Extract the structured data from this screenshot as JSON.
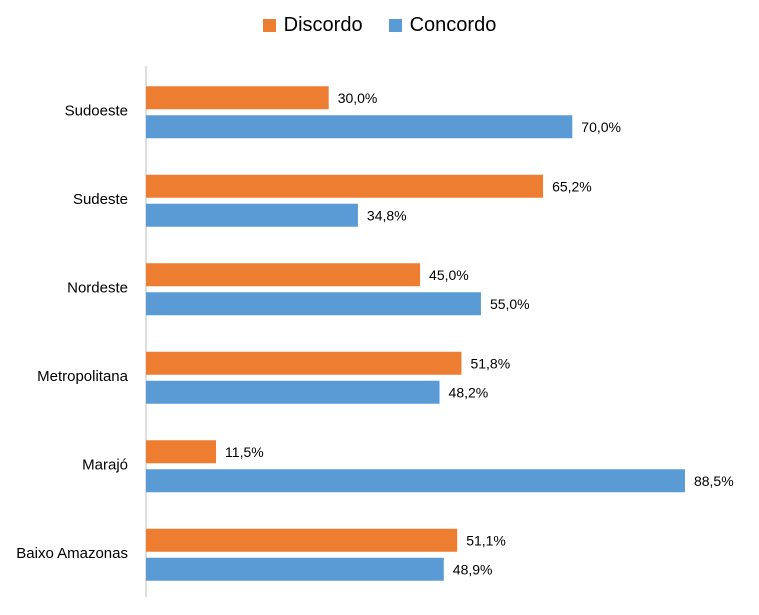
{
  "chart_data": {
    "type": "bar",
    "orientation": "horizontal",
    "categories": [
      "Sudoeste",
      "Sudeste",
      "Nordeste",
      "Metropolitana",
      "Marajó",
      "Baixo Amazonas"
    ],
    "series": [
      {
        "name": "Discordo",
        "color": "#ED7D31",
        "values": [
          30.0,
          65.2,
          45.0,
          51.8,
          11.5,
          51.1
        ],
        "labels": [
          "30,0%",
          "65,2%",
          "45,0%",
          "51,8%",
          "11,5%",
          "51,1%"
        ]
      },
      {
        "name": "Concordo",
        "color": "#5B9BD5",
        "values": [
          70.0,
          34.8,
          55.0,
          48.2,
          88.5,
          48.9
        ],
        "labels": [
          "70,0%",
          "34,8%",
          "55,0%",
          "48,2%",
          "88,5%",
          "48,9%"
        ]
      }
    ],
    "legend_position": "top",
    "grid": false
  }
}
